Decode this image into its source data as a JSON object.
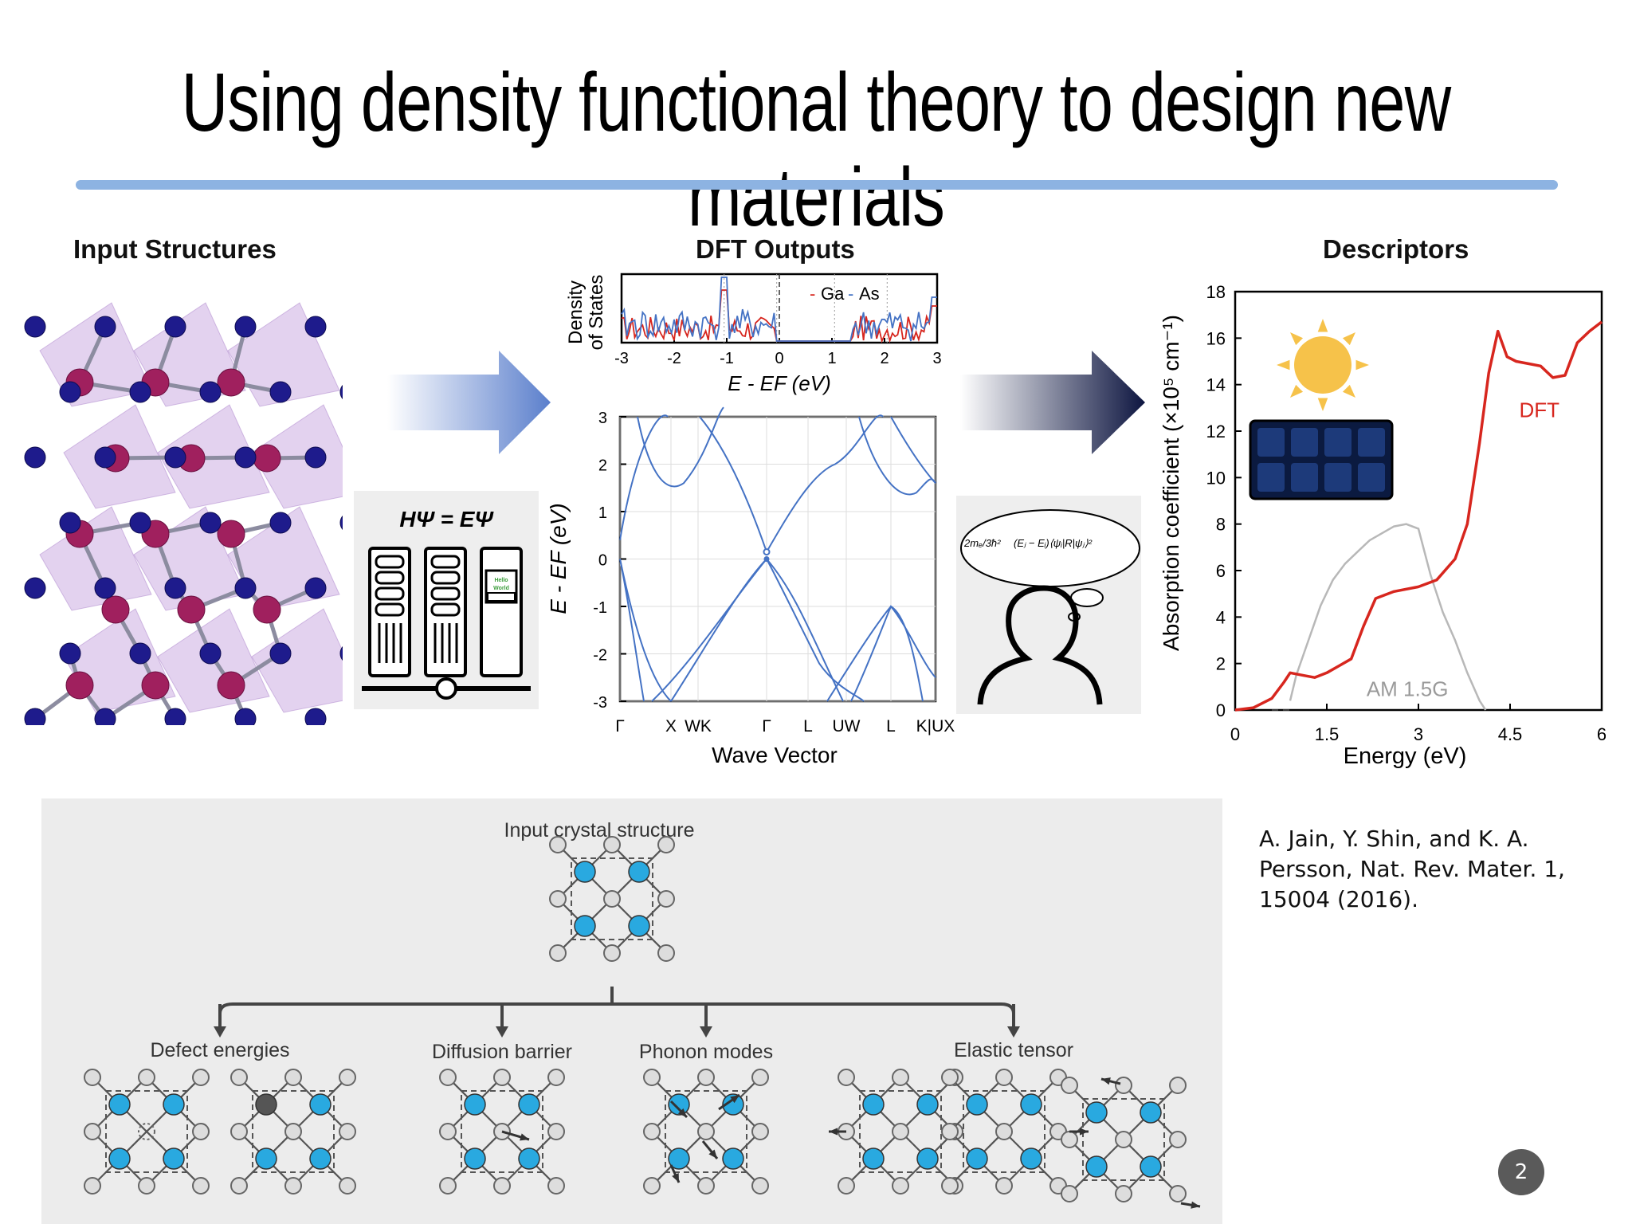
{
  "slide": {
    "title": "Using density functional theory to design new materials",
    "page_number": "2",
    "citation": "A. Jain, Y. Shin, and K. A. Persson, Nat. Rev. Mater. 1, 15004 (2016).",
    "colors": {
      "title_rule": "#8db3e2",
      "band_line": "#4472c4",
      "dft_curve": "#d7261e",
      "am15g": "#b8b8b8",
      "atom_blue": "#29a9e0"
    }
  },
  "input_structures": {
    "heading": "Input Structures",
    "equation": "HΨ = EΨ",
    "screen_text_1": "Hello",
    "screen_text_2": "World"
  },
  "dft_outputs": {
    "heading": "DFT Outputs",
    "dos": {
      "ylabel_1": "Density",
      "ylabel_2": "of States",
      "xlabel": "E - EF (eV)",
      "legend": [
        "Ga",
        "As"
      ],
      "x_ticks": [
        "-3",
        "-2",
        "-1",
        "0",
        "1",
        "2",
        "3"
      ]
    },
    "bands": {
      "ylabel": "E - EF (eV)",
      "xlabel": "Wave Vector",
      "y_ticks": [
        "3",
        "2",
        "1",
        "0",
        "-1",
        "-2",
        "-3"
      ],
      "k_labels": [
        "Γ",
        "X",
        "WK",
        "Γ",
        "L",
        "UW",
        "L",
        "K|UX"
      ]
    }
  },
  "descriptors": {
    "heading": "Descriptors",
    "equation_prefix": "2mₑ/3ħ²",
    "equation_body": "(Eⱼ − Eᵢ)⟨ψᵢ|R|ψⱼ⟩²"
  },
  "chart_data": {
    "type": "line",
    "title": "",
    "xlabel": "Energy (eV)",
    "ylabel": "Absorption coefficient (×10⁵ cm⁻¹)",
    "xlim": [
      0,
      6
    ],
    "ylim": [
      0,
      18
    ],
    "x_ticks": [
      "0",
      "1.5",
      "3",
      "4.5",
      "6"
    ],
    "y_ticks": [
      "0",
      "2",
      "4",
      "6",
      "8",
      "10",
      "12",
      "14",
      "16",
      "18"
    ],
    "series": [
      {
        "name": "DFT",
        "x": [
          0,
          0.3,
          0.6,
          0.8,
          0.9,
          1.1,
          1.3,
          1.5,
          1.7,
          1.9,
          2.1,
          2.3,
          2.6,
          3.0,
          3.3,
          3.6,
          3.8,
          4.0,
          4.15,
          4.3,
          4.45,
          4.6,
          4.8,
          5.0,
          5.2,
          5.4,
          5.6,
          5.8,
          6.0
        ],
        "y": [
          0,
          0.1,
          0.5,
          1.2,
          1.6,
          1.5,
          1.4,
          1.6,
          1.9,
          2.2,
          3.6,
          4.8,
          5.1,
          5.3,
          5.6,
          6.5,
          8.0,
          11.5,
          14.5,
          16.3,
          15.2,
          15.0,
          14.9,
          14.8,
          14.3,
          14.4,
          15.8,
          16.3,
          16.7
        ]
      },
      {
        "name": "AM 1.5G",
        "x": [
          0.9,
          1.0,
          1.2,
          1.4,
          1.6,
          1.8,
          2.0,
          2.2,
          2.4,
          2.6,
          2.8,
          3.0,
          3.2,
          3.4,
          3.6,
          3.8,
          4.0,
          4.1
        ],
        "y": [
          0.4,
          1.5,
          3.0,
          4.5,
          5.6,
          6.3,
          6.8,
          7.3,
          7.6,
          7.9,
          8.0,
          7.8,
          5.8,
          4.2,
          3.0,
          1.6,
          0.4,
          0.0
        ]
      }
    ],
    "annotations": [
      "DFT",
      "AM 1.5G"
    ]
  },
  "workflow": {
    "input_label": "Input crystal structure",
    "branches": [
      "Defect energies",
      "Diffusion barrier",
      "Phonon modes",
      "Elastic tensor"
    ]
  }
}
